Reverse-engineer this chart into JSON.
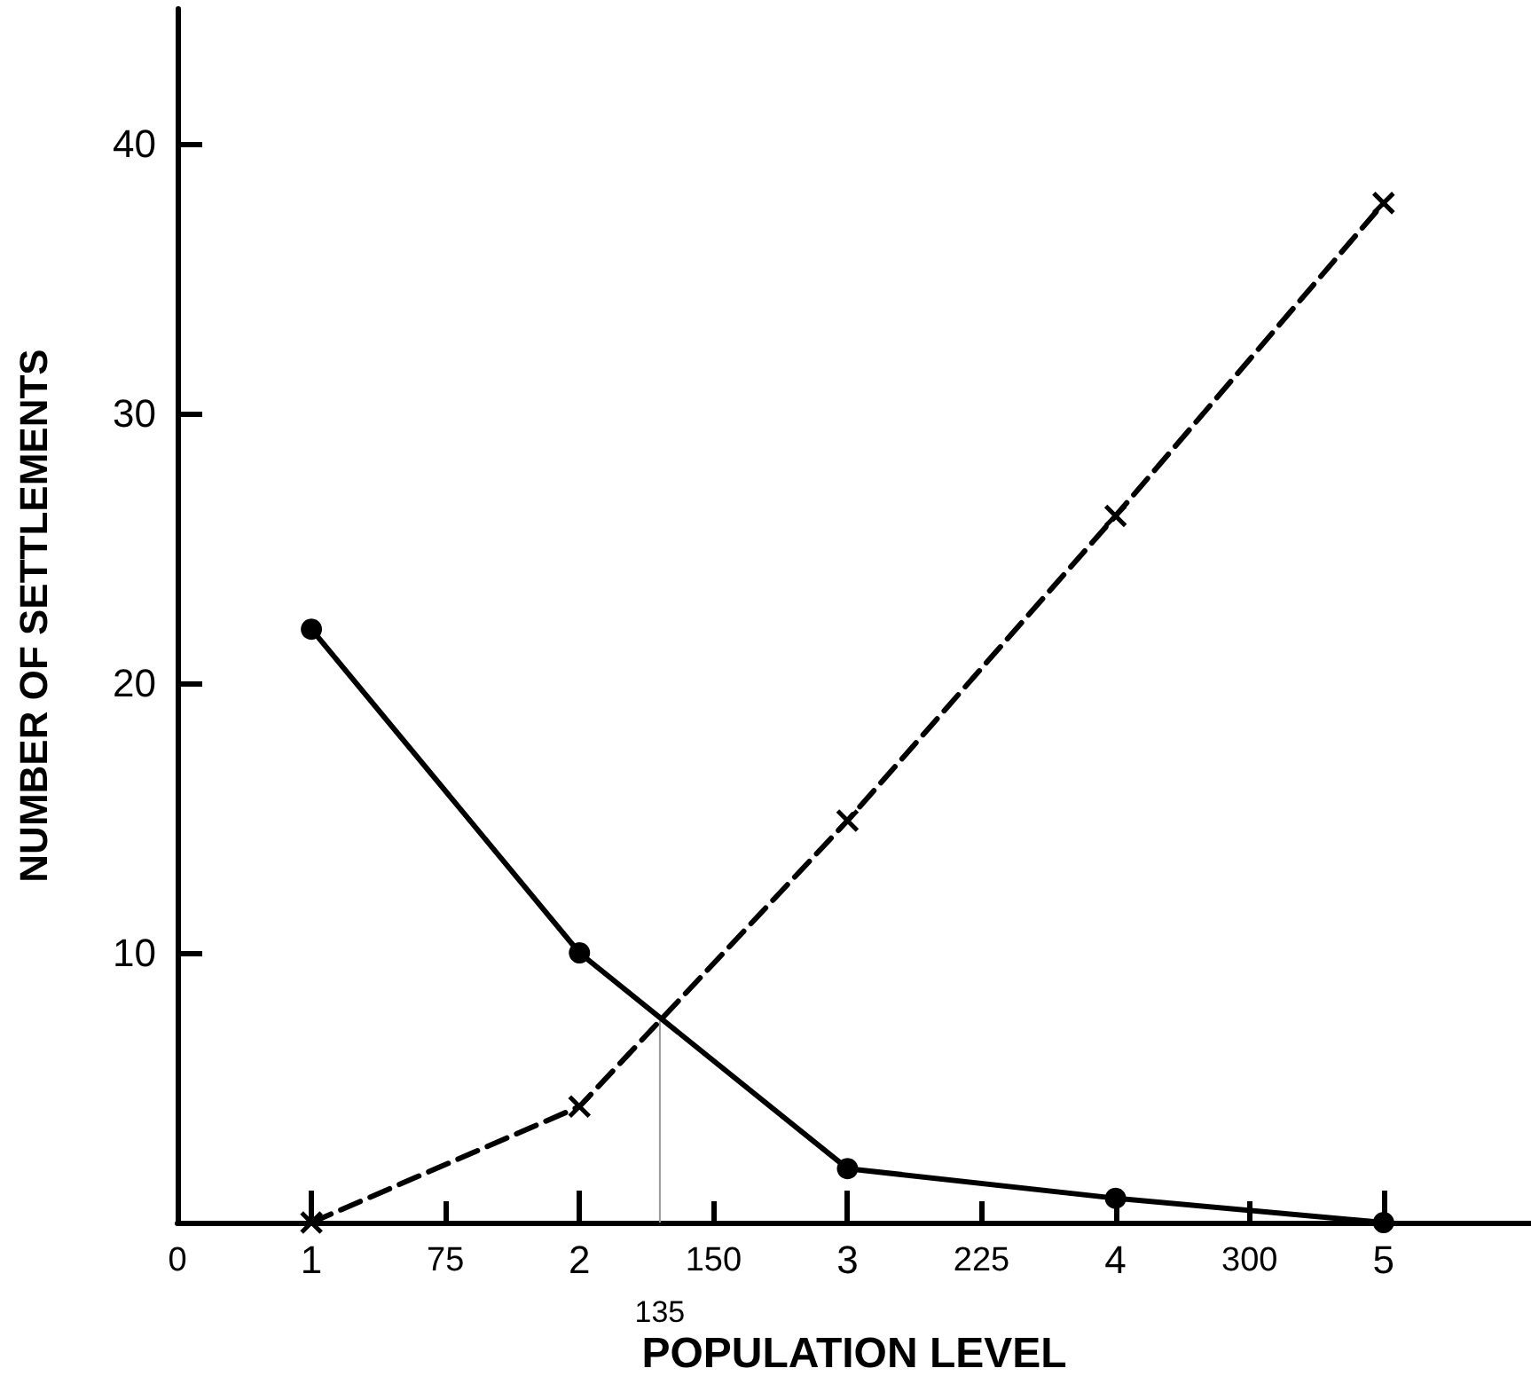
{
  "chart_data": {
    "type": "line",
    "xlabel": "POPULATION LEVEL",
    "ylabel": "NUMBER OF SETTLEMENTS",
    "x": [
      1,
      2,
      3,
      4,
      5
    ],
    "series": [
      {
        "color": "#000000",
        "marker": "circle",
        "line_style": "solid",
        "values": [
          22,
          10,
          2,
          0.9,
          0
        ]
      },
      {
        "color": "#000000",
        "marker": "cross",
        "line_style": "dashed",
        "values": [
          0,
          4.3,
          14.9,
          26.2,
          37.8
        ]
      }
    ],
    "xlim": [
      0.5,
      5.55
    ],
    "xticks": [
      1,
      2,
      3,
      4,
      5
    ],
    "x2lim": [
      0,
      378.75
    ],
    "x2ticks": [
      0,
      75,
      150,
      225,
      300
    ],
    "ylim": [
      0,
      45
    ],
    "yticks": [
      10,
      20,
      30,
      40
    ],
    "ref_lines": [
      {
        "axis": "x2",
        "value": 135,
        "label": "135",
        "color": "#999999"
      }
    ],
    "grid": false,
    "legend": false
  }
}
